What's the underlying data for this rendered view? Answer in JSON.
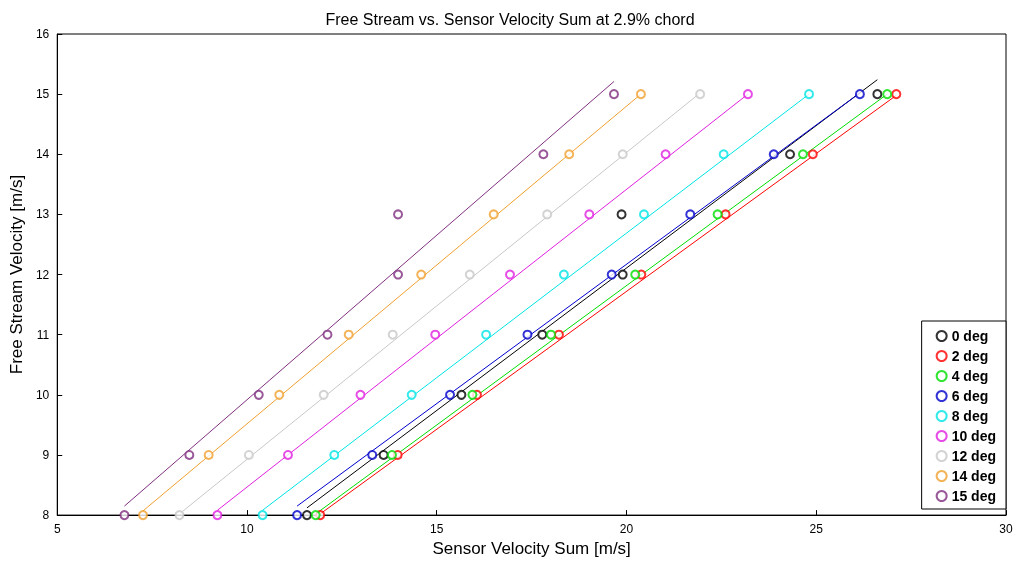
{
  "chart_data": {
    "type": "scatter",
    "title": "Free Stream vs. Sensor Velocity Sum at 2.9% chord",
    "xlabel": "Sensor Velocity Sum [m/s]",
    "ylabel": "Free Stream Velocity [m/s]",
    "xlim": [
      5,
      30
    ],
    "xticks": [
      5,
      10,
      15,
      20,
      25,
      30
    ],
    "ylim": [
      8,
      16
    ],
    "yticks": [
      8,
      9,
      10,
      11,
      12,
      13,
      14,
      15,
      16
    ],
    "grid": false,
    "legend": "bottom right",
    "marker": "circle",
    "series": [
      {
        "name": "0 deg",
        "color": "#000000",
        "x": [
          11.58,
          13.6,
          15.65,
          17.78,
          19.9,
          19.87,
          24.31,
          26.61
        ],
        "values": [
          8,
          9,
          10,
          11,
          12,
          13,
          14,
          15
        ]
      },
      {
        "name": "2 deg",
        "color": "#ff0000",
        "x": [
          11.93,
          13.97,
          16.06,
          18.22,
          20.39,
          22.61,
          24.91,
          27.11
        ],
        "values": [
          8,
          9,
          10,
          11,
          12,
          13,
          14,
          15
        ]
      },
      {
        "name": "4 deg",
        "color": "#00dd00",
        "x": [
          11.81,
          13.82,
          15.94,
          18.01,
          20.23,
          22.4,
          24.65,
          26.87
        ],
        "values": [
          8,
          9,
          10,
          11,
          12,
          13,
          14,
          15
        ]
      },
      {
        "name": "6 deg",
        "color": "#0000cc",
        "x": [
          11.32,
          13.3,
          15.35,
          17.39,
          19.61,
          21.68,
          23.88,
          26.15
        ],
        "values": [
          8,
          9,
          10,
          11,
          12,
          13,
          14,
          15
        ]
      },
      {
        "name": "8 deg",
        "color": "#00e5e5",
        "x": [
          10.41,
          12.3,
          14.34,
          16.3,
          18.35,
          20.46,
          22.56,
          24.81
        ],
        "values": [
          8,
          9,
          10,
          11,
          12,
          13,
          14,
          15
        ]
      },
      {
        "name": "10 deg",
        "color": "#e020e0",
        "x": [
          9.22,
          11.08,
          12.99,
          14.96,
          16.93,
          19.02,
          21.03,
          23.2
        ],
        "values": [
          8,
          9,
          10,
          11,
          12,
          13,
          14,
          15
        ]
      },
      {
        "name": "12 deg",
        "color": "#c8c8c8",
        "x": [
          8.22,
          10.05,
          12.02,
          13.84,
          15.87,
          17.91,
          19.9,
          21.94
        ],
        "values": [
          8,
          9,
          10,
          11,
          12,
          13,
          14,
          15
        ]
      },
      {
        "name": "14 deg",
        "color": "#f0a030",
        "x": [
          7.26,
          8.99,
          10.85,
          12.68,
          14.59,
          16.5,
          18.49,
          20.38
        ],
        "values": [
          8,
          9,
          10,
          11,
          12,
          13,
          14,
          15
        ]
      },
      {
        "name": "15 deg",
        "color": "#803080",
        "x": [
          6.77,
          8.48,
          10.31,
          12.12,
          13.98,
          13.98,
          17.81,
          19.67
        ],
        "values": [
          8,
          9,
          10,
          11,
          12,
          13,
          14,
          15
        ]
      },
      {
        "type": "line",
        "marker": "none",
        "color": "#000000",
        "x": [
          11.58,
          26.61
        ],
        "values": [
          8.12,
          15.24
        ]
      },
      {
        "type": "line",
        "marker": "none",
        "color": "#ff0000",
        "x": [
          11.93,
          27.11
        ],
        "values": [
          8.02,
          14.98
        ]
      },
      {
        "type": "line",
        "marker": "none",
        "color": "#00dd00",
        "x": [
          11.81,
          26.87
        ],
        "values": [
          8.02,
          15.0
        ]
      },
      {
        "type": "line",
        "marker": "none",
        "color": "#0000cc",
        "x": [
          11.32,
          26.15
        ],
        "values": [
          8.15,
          15.02
        ]
      },
      {
        "type": "line",
        "marker": "none",
        "color": "#00e5e5",
        "x": [
          10.41,
          24.81
        ],
        "values": [
          8.08,
          15.0
        ]
      },
      {
        "type": "line",
        "marker": "none",
        "color": "#e020e0",
        "x": [
          9.22,
          23.2
        ],
        "values": [
          8.08,
          15.0
        ]
      },
      {
        "type": "line",
        "marker": "none",
        "color": "#c8c8c8",
        "x": [
          8.22,
          21.94
        ],
        "values": [
          8.02,
          15.02
        ]
      },
      {
        "type": "line",
        "marker": "none",
        "color": "#f0a030",
        "x": [
          7.26,
          20.38
        ],
        "values": [
          8.07,
          15.0
        ]
      },
      {
        "type": "line",
        "marker": "none",
        "color": "#803080",
        "x": [
          6.77,
          19.67
        ],
        "values": [
          8.15,
          15.21
        ]
      }
    ]
  }
}
